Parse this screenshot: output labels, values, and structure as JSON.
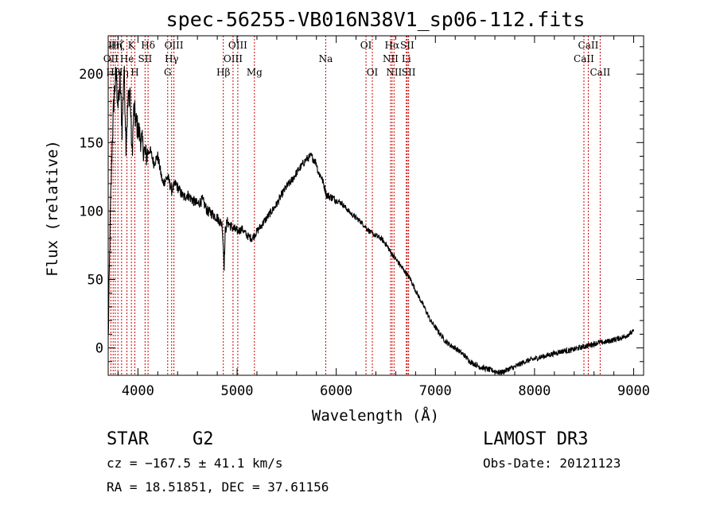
{
  "chart_data": {
    "type": "line",
    "title": "spec-56255-VB016N38V1_sp06-112.fits",
    "xlabel": "Wavelength (Å)",
    "ylabel": "Flux (relative)",
    "xlim": [
      3700,
      9100
    ],
    "ylim": [
      -20,
      228
    ],
    "xticks": [
      4000,
      5000,
      6000,
      7000,
      8000,
      9000
    ],
    "xtick_labels": [
      "4000",
      "5000",
      "6000",
      "7000",
      "8000",
      "9000"
    ],
    "yticks": [
      0,
      50,
      100,
      150,
      200
    ],
    "ytick_labels": [
      "0",
      "50",
      "100",
      "150",
      "200"
    ],
    "grid": false,
    "series": [
      {
        "name": "flux",
        "x": [
          3700,
          3720,
          3740,
          3760,
          3780,
          3800,
          3820,
          3840,
          3860,
          3880,
          3900,
          3920,
          3940,
          3960,
          3980,
          4000,
          4040,
          4080,
          4120,
          4160,
          4200,
          4250,
          4300,
          4340,
          4380,
          4420,
          4460,
          4500,
          4550,
          4600,
          4650,
          4700,
          4750,
          4800,
          4850,
          4870,
          4880,
          4900,
          4950,
          5000,
          5050,
          5100,
          5150,
          5200,
          5250,
          5300,
          5350,
          5400,
          5450,
          5500,
          5550,
          5600,
          5650,
          5700,
          5750,
          5780,
          5800,
          5820,
          5850,
          5880,
          5900,
          5950,
          6000,
          6050,
          6100,
          6150,
          6200,
          6250,
          6300,
          6350,
          6400,
          6450,
          6500,
          6550,
          6600,
          6650,
          6700,
          6750,
          6800,
          6850,
          6900,
          6950,
          7000,
          7050,
          7100,
          7150,
          7200,
          7250,
          7300,
          7350,
          7400,
          7450,
          7500,
          7550,
          7600,
          7650,
          7700,
          7750,
          7800,
          7850,
          7900,
          7950,
          8000,
          8050,
          8100,
          8150,
          8200,
          8250,
          8300,
          8350,
          8400,
          8450,
          8500,
          8550,
          8600,
          8650,
          8700,
          8750,
          8800,
          8850,
          8900,
          8950,
          9000
        ],
        "values": [
          5,
          90,
          150,
          185,
          200,
          175,
          195,
          160,
          205,
          150,
          180,
          190,
          140,
          175,
          165,
          160,
          150,
          140,
          145,
          135,
          140,
          120,
          125,
          115,
          120,
          115,
          110,
          112,
          108,
          105,
          108,
          100,
          98,
          95,
          90,
          60,
          85,
          92,
          88,
          85,
          87,
          82,
          80,
          85,
          90,
          95,
          100,
          105,
          112,
          118,
          122,
          128,
          133,
          138,
          140,
          137,
          135,
          128,
          125,
          118,
          112,
          110,
          108,
          106,
          102,
          98,
          95,
          92,
          88,
          84,
          82,
          80,
          76,
          70,
          65,
          60,
          55,
          50,
          42,
          35,
          28,
          20,
          15,
          10,
          5,
          2,
          0,
          -3,
          -6,
          -10,
          -12,
          -14,
          -15,
          -16,
          -17,
          -18,
          -17,
          -15,
          -14,
          -12,
          -10,
          -9,
          -8,
          -7,
          -6,
          -5,
          -4,
          -3,
          -2,
          -2,
          -1,
          0,
          1,
          2,
          3,
          4,
          4,
          5,
          6,
          7,
          8,
          10,
          12
        ]
      }
    ],
    "line_markers": [
      {
        "wavelength": 3727,
        "label": "OII",
        "row": 1
      },
      {
        "wavelength": 3750,
        "label": "Hθ",
        "row": 2
      },
      {
        "wavelength": 3771,
        "label": "Hη",
        "row": 0
      },
      {
        "wavelength": 3798,
        "label": "Hζ",
        "row": 0
      },
      {
        "wavelength": 3835,
        "label": "Hη",
        "row": 2
      },
      {
        "wavelength": 3889,
        "label": "He",
        "row": 1
      },
      {
        "wavelength": 3934,
        "label": "K",
        "row": 0
      },
      {
        "wavelength": 3969,
        "label": "H",
        "row": 2
      },
      {
        "wavelength": 4072,
        "label": "SII",
        "row": 1
      },
      {
        "wavelength": 4102,
        "label": "Hδ",
        "row": 0
      },
      {
        "wavelength": 4300,
        "label": "G",
        "row": 2
      },
      {
        "wavelength": 4340,
        "label": "Hγ",
        "row": 1
      },
      {
        "wavelength": 4363,
        "label": "OIII",
        "row": 0
      },
      {
        "wavelength": 4861,
        "label": "Hβ",
        "row": 2
      },
      {
        "wavelength": 4959,
        "label": "OIII",
        "row": 1
      },
      {
        "wavelength": 5007,
        "label": "OIII",
        "row": 0
      },
      {
        "wavelength": 5175,
        "label": "Mg",
        "row": 2
      },
      {
        "wavelength": 5894,
        "label": "Na",
        "row": 1
      },
      {
        "wavelength": 6300,
        "label": "OI",
        "row": 0
      },
      {
        "wavelength": 6364,
        "label": "OI",
        "row": 2
      },
      {
        "wavelength": 6548,
        "label": "NII",
        "row": 1
      },
      {
        "wavelength": 6563,
        "label": "Hα",
        "row": 0
      },
      {
        "wavelength": 6583,
        "label": "NII",
        "row": 2
      },
      {
        "wavelength": 6707,
        "label": "Li",
        "row": 1
      },
      {
        "wavelength": 6716,
        "label": "SII",
        "row": 0
      },
      {
        "wavelength": 6730,
        "label": "SII",
        "row": 2
      },
      {
        "wavelength": 8498,
        "label": "CaII",
        "row": 1
      },
      {
        "wavelength": 8542,
        "label": "CaII",
        "row": 0
      },
      {
        "wavelength": 8662,
        "label": "CaII",
        "row": 2
      }
    ]
  },
  "info": {
    "object_class": "STAR",
    "subclass": "G2",
    "survey": "LAMOST DR3",
    "redshift_text": "cz = −167.5 ± 41.1 km/s",
    "obs_date": "Obs-Date: 20121123",
    "coords": "RA =  18.51851, DEC =  37.61156"
  },
  "colors": {
    "spectrum": "#000000",
    "marker_line": "#cc0000",
    "text": "#000000"
  }
}
